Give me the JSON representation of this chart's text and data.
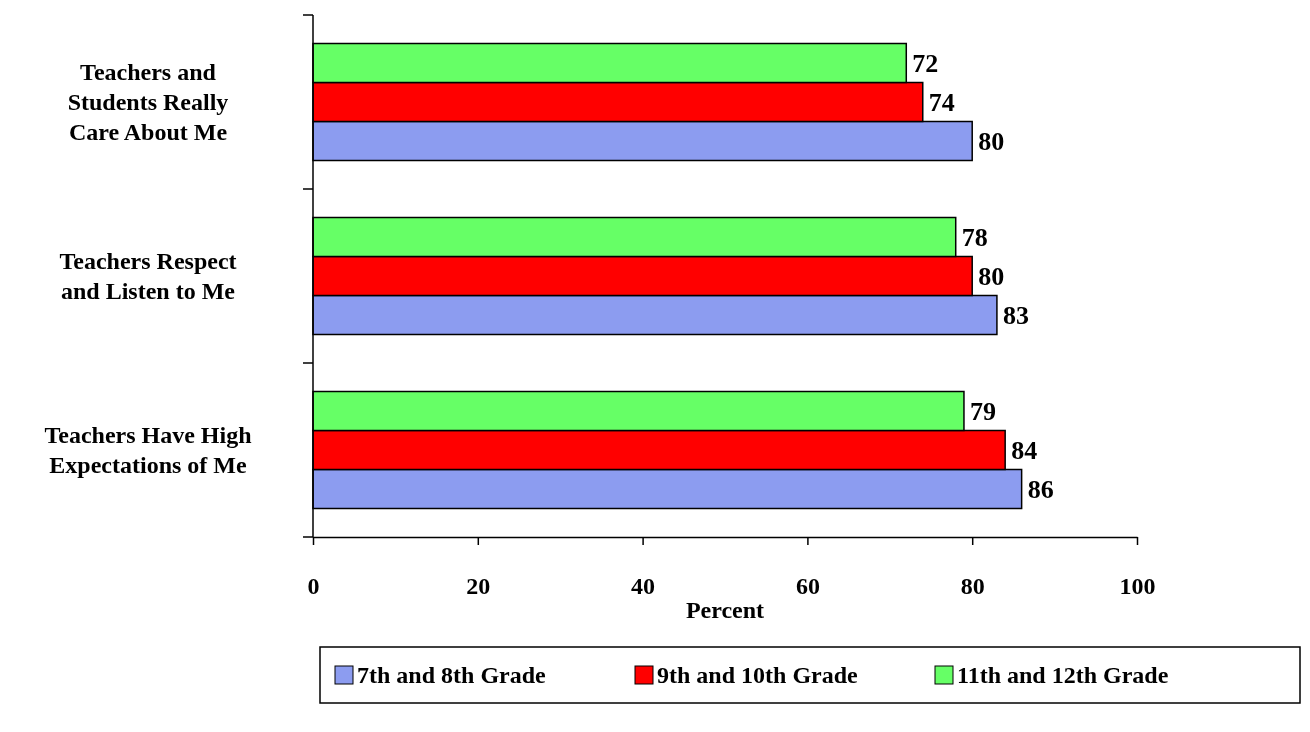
{
  "chart_data": {
    "type": "bar",
    "orientation": "horizontal",
    "xlabel": "Percent",
    "categories": [
      "Teachers and\nStudents Really\nCare About Me",
      "Teachers Respect\nand Listen to Me",
      "Teachers Have High\nExpectations of Me"
    ],
    "series": [
      {
        "name": "7th and 8th Grade",
        "color": "#8c9cf0",
        "values": [
          80,
          83,
          86
        ]
      },
      {
        "name": "9th and 10th Grade",
        "color": "#ff0000",
        "values": [
          74,
          80,
          84
        ]
      },
      {
        "name": "11th and 12th Grade",
        "color": "#66ff66",
        "values": [
          72,
          78,
          79
        ]
      }
    ],
    "xlim": [
      0,
      100
    ],
    "xticks": [
      0,
      20,
      40,
      60,
      80,
      100
    ],
    "data_labels": true,
    "legend": "bottom",
    "grid": false
  }
}
